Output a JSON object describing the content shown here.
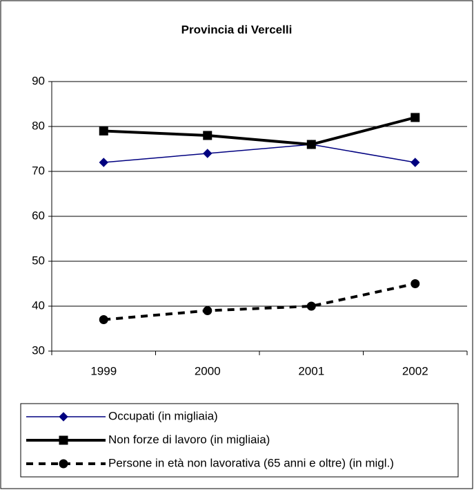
{
  "chart_data": {
    "type": "line",
    "title": "Provincia di Vercelli",
    "categories": [
      "1999",
      "2000",
      "2001",
      "2002"
    ],
    "series": [
      {
        "name": "Occupati (in migliaia)",
        "color": "#000080",
        "marker": "diamond",
        "line_width": 1.5,
        "dashed": false,
        "values": [
          72,
          74,
          76,
          72
        ]
      },
      {
        "name": "Non forze di lavoro (in migliaia)",
        "color": "#000000",
        "marker": "square",
        "line_width": 4,
        "dashed": false,
        "values": [
          79,
          78,
          76,
          82
        ]
      },
      {
        "name": "Persone in età non lavorativa (65 anni e oltre) (in migl.)",
        "color": "#000000",
        "marker": "circle",
        "line_width": 4,
        "dashed": true,
        "values": [
          37,
          39,
          40,
          45
        ]
      }
    ],
    "ylim": [
      30,
      90
    ],
    "yticks": [
      30,
      40,
      50,
      60,
      70,
      80,
      90
    ],
    "grid": true,
    "legend": "bottom"
  }
}
